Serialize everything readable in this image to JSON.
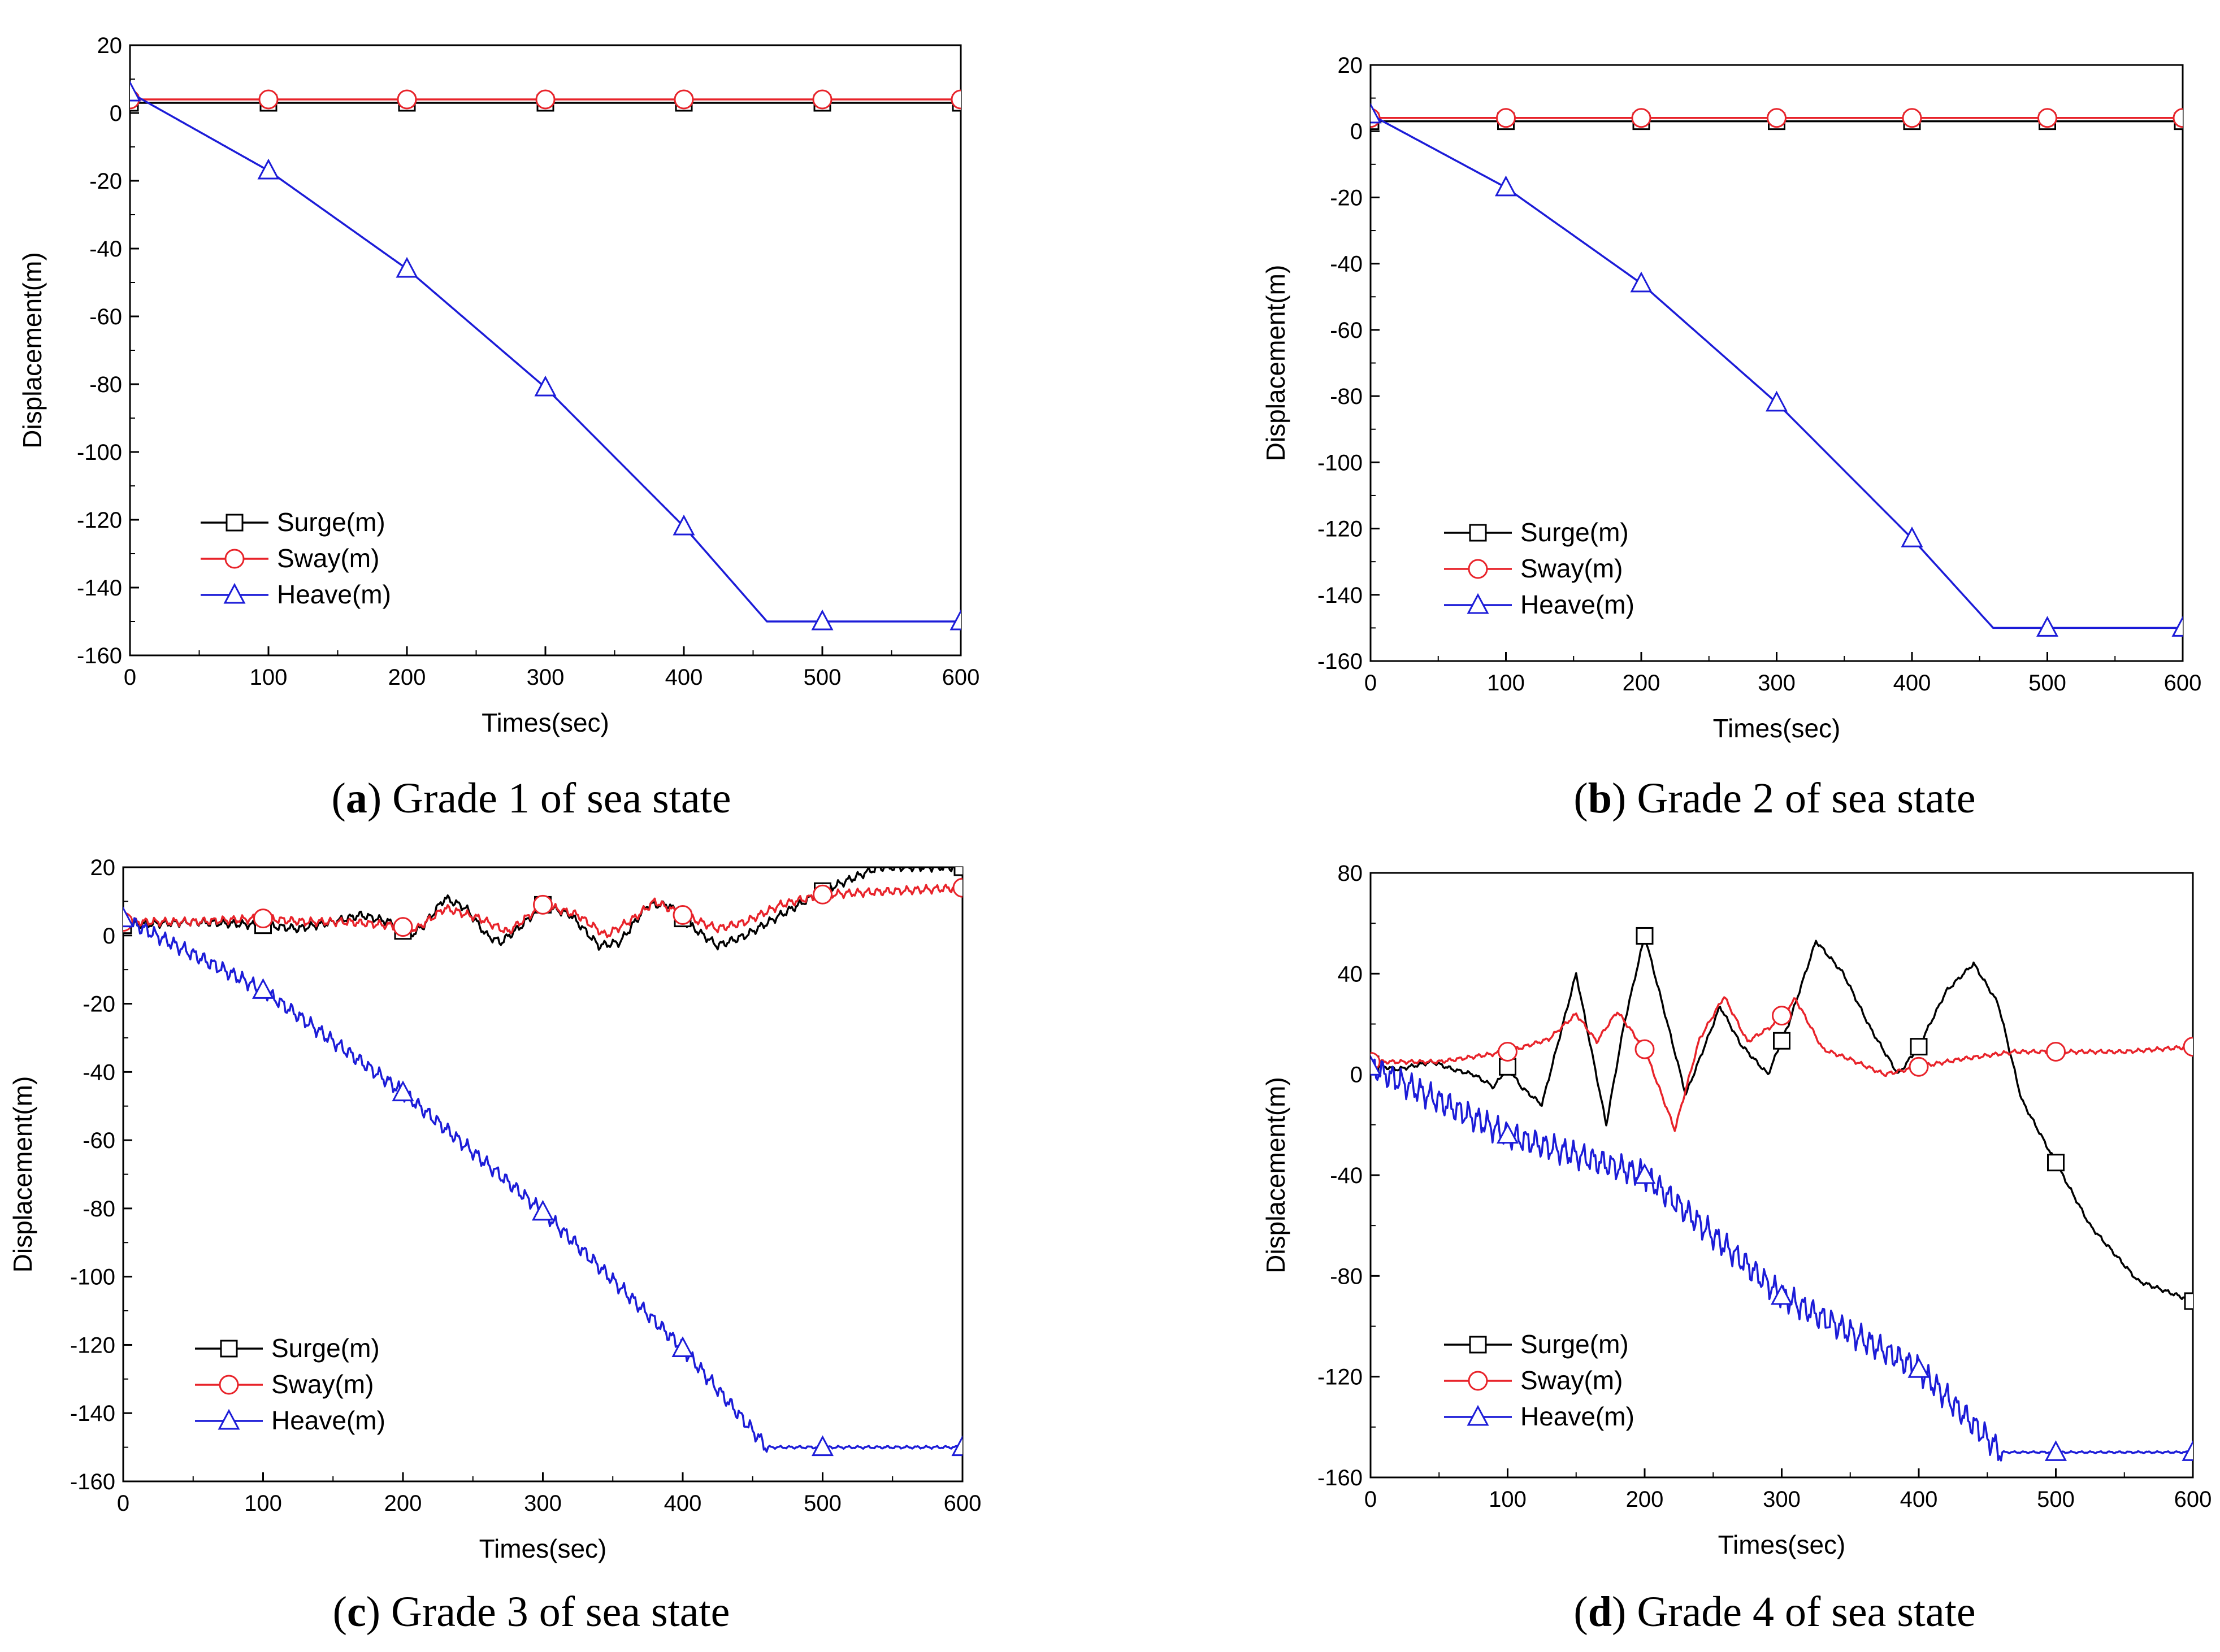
{
  "colors": {
    "surge": "#000000",
    "sway": "#e8232a",
    "heave": "#1c1cd8"
  },
  "legend_labels": [
    "Surge(m)",
    "Sway(m)",
    "Heave(m)"
  ],
  "captions": [
    {
      "letter": "a",
      "text": " Grade 1 of sea state"
    },
    {
      "letter": "b",
      "text": " Grade 2 of sea state"
    },
    {
      "letter": "c",
      "text": " Grade 3 of sea state"
    },
    {
      "letter": "d",
      "text": " Grade 4 of sea state"
    }
  ],
  "chart_data": [
    {
      "type": "line",
      "title": "(a) Grade 1 of sea state",
      "xlabel": "Times(sec)",
      "ylabel": "Displacement(m)",
      "xlim": [
        0,
        600
      ],
      "ylim": [
        -160,
        20
      ],
      "xticks": [
        0,
        100,
        200,
        300,
        400,
        500,
        600
      ],
      "yticks": [
        20,
        0,
        -20,
        -40,
        -60,
        -80,
        -100,
        -120,
        -140,
        -160
      ],
      "legend": "lower-left",
      "series": [
        {
          "name": "Surge(m)",
          "x": [
            0,
            100,
            200,
            300,
            400,
            500,
            600
          ],
          "values": [
            3,
            3,
            3,
            3,
            3,
            3,
            3
          ]
        },
        {
          "name": "Sway(m)",
          "x": [
            0,
            100,
            200,
            300,
            400,
            500,
            600
          ],
          "values": [
            4,
            4,
            4,
            4,
            4,
            4,
            4
          ]
        },
        {
          "name": "Heave(m)",
          "x": [
            0,
            100,
            200,
            300,
            400,
            460,
            500,
            600
          ],
          "values": [
            6,
            -17,
            -46,
            -81,
            -122,
            -150,
            -150,
            -150
          ]
        }
      ]
    },
    {
      "type": "line",
      "title": "(b) Grade 2 of sea state",
      "xlabel": "Times(sec)",
      "ylabel": "Displacement(m)",
      "xlim": [
        0,
        600
      ],
      "ylim": [
        -160,
        20
      ],
      "xticks": [
        0,
        100,
        200,
        300,
        400,
        500,
        600
      ],
      "yticks": [
        20,
        0,
        -20,
        -40,
        -60,
        -80,
        -100,
        -120,
        -140,
        -160
      ],
      "legend": "lower-left",
      "series": [
        {
          "name": "Surge(m)",
          "x": [
            0,
            100,
            200,
            300,
            400,
            500,
            600
          ],
          "values": [
            3,
            3,
            3,
            3,
            3,
            3,
            3
          ]
        },
        {
          "name": "Sway(m)",
          "x": [
            0,
            100,
            200,
            300,
            400,
            500,
            600
          ],
          "values": [
            4,
            4,
            4,
            4,
            4,
            4,
            4
          ]
        },
        {
          "name": "Heave(m)",
          "x": [
            0,
            100,
            200,
            300,
            400,
            460,
            500,
            600
          ],
          "values": [
            5,
            -17,
            -46,
            -82,
            -123,
            -150,
            -150,
            -150
          ]
        }
      ]
    },
    {
      "type": "line",
      "title": "(c) Grade 3 of sea state",
      "xlabel": "Times(sec)",
      "ylabel": "Displacement(m)",
      "xlim": [
        0,
        600
      ],
      "ylim": [
        -160,
        20
      ],
      "xticks": [
        0,
        100,
        200,
        300,
        400,
        500,
        600
      ],
      "yticks": [
        20,
        0,
        -20,
        -40,
        -60,
        -80,
        -100,
        -120,
        -140,
        -160
      ],
      "legend": "lower-left",
      "series": [
        {
          "name": "Surge(m)",
          "x": [
            0,
            50,
            100,
            125,
            150,
            170,
            190,
            205,
            215,
            230,
            245,
            260,
            270,
            285,
            300,
            320,
            340,
            355,
            375,
            390,
            405,
            425,
            445,
            470,
            500,
            540,
            600
          ],
          "values": [
            3,
            4,
            3,
            2,
            4,
            6,
            4,
            0,
            3,
            11,
            8,
            0,
            -2,
            3,
            9,
            6,
            -3,
            -2,
            9,
            9,
            3,
            -3,
            0,
            6,
            13,
            20,
            20
          ]
        },
        {
          "name": "Sway(m)",
          "x": [
            0,
            50,
            100,
            130,
            160,
            190,
            210,
            230,
            255,
            275,
            300,
            325,
            345,
            365,
            380,
            400,
            425,
            445,
            470,
            500,
            550,
            600
          ],
          "values": [
            4,
            4,
            5,
            4,
            4,
            3,
            2,
            8,
            5,
            1,
            9,
            6,
            0,
            5,
            10,
            6,
            2,
            4,
            9,
            12,
            13,
            14
          ]
        },
        {
          "name": "Heave(m)",
          "x": [
            0,
            100,
            200,
            300,
            400,
            460,
            500,
            600
          ],
          "values": [
            5,
            -16,
            -46,
            -81,
            -121,
            -150,
            -150,
            -150
          ]
        }
      ]
    },
    {
      "type": "line",
      "title": "(d) Grade 4 of sea state",
      "xlabel": "Times(sec)",
      "ylabel": "Displacement(m)",
      "xlim": [
        0,
        600
      ],
      "ylim": [
        -160,
        80
      ],
      "xticks": [
        0,
        100,
        200,
        300,
        400,
        500,
        600
      ],
      "yticks": [
        80,
        40,
        0,
        -40,
        -80,
        -120,
        -160
      ],
      "legend": "lower-left",
      "series": [
        {
          "name": "Surge(m)",
          "x": [
            0,
            20,
            45,
            60,
            75,
            90,
            100,
            110,
            125,
            150,
            172,
            185,
            200,
            212,
            230,
            255,
            270,
            290,
            305,
            325,
            345,
            365,
            385,
            400,
            420,
            440,
            458,
            475,
            500,
            525,
            560,
            600
          ],
          "values": [
            4,
            2,
            5,
            2,
            0,
            -5,
            3,
            -5,
            -12,
            40,
            -20,
            20,
            55,
            30,
            -8,
            27,
            12,
            0,
            20,
            53,
            40,
            18,
            0,
            11,
            33,
            44,
            28,
            -10,
            -35,
            -60,
            -82,
            -90
          ]
        },
        {
          "name": "Sway(m)",
          "x": [
            0,
            50,
            100,
            130,
            150,
            165,
            180,
            200,
            222,
            240,
            258,
            275,
            295,
            310,
            330,
            350,
            375,
            400,
            430,
            470,
            500,
            550,
            600
          ],
          "values": [
            5,
            5,
            9,
            14,
            24,
            13,
            25,
            10,
            -22,
            14,
            31,
            13,
            20,
            30,
            10,
            6,
            0,
            3,
            6,
            9,
            9,
            9,
            11
          ]
        },
        {
          "name": "Heave(m)",
          "x": [
            0,
            100,
            200,
            300,
            400,
            460,
            500,
            600
          ],
          "values": [
            3,
            -24,
            -40,
            -88,
            -117,
            -150,
            -150,
            -150
          ]
        }
      ]
    }
  ]
}
